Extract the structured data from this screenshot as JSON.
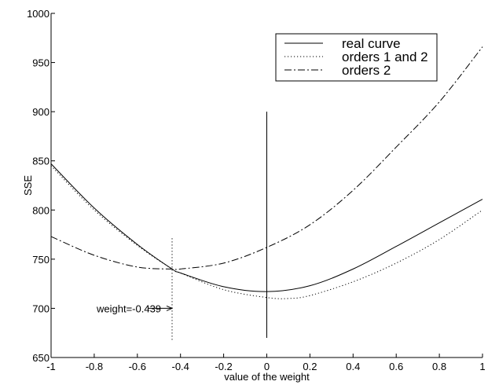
{
  "chart_data": {
    "type": "line",
    "title": "",
    "xlabel": "value of the weight",
    "ylabel": "SSE",
    "xlim": [
      -1,
      1
    ],
    "ylim": [
      650,
      1000
    ],
    "x_ticks": [
      -1,
      -0.8,
      -0.6,
      -0.4,
      -0.2,
      0,
      0.2,
      0.4,
      0.6,
      0.8,
      1
    ],
    "x_tick_labels": [
      "-1",
      "-0.8",
      "-0.6",
      "-0.4",
      "-0.2",
      "0",
      "0.2",
      "0.4",
      "0.6",
      "0.8",
      "1"
    ],
    "y_ticks": [
      650,
      700,
      750,
      800,
      850,
      900,
      950,
      1000
    ],
    "y_tick_labels": [
      "650",
      "700",
      "750",
      "800",
      "850",
      "900",
      "950",
      "1000"
    ],
    "grid": false,
    "legend_position": "top-right",
    "series": [
      {
        "name": "real curve",
        "style": "solid",
        "x": [
          -1,
          -0.8,
          -0.6,
          -0.439,
          -0.4,
          -0.2,
          0,
          0.2,
          0.4,
          0.6,
          0.8,
          1
        ],
        "y": [
          847,
          802,
          765,
          740,
          736,
          722,
          717,
          723,
          740,
          763,
          787,
          811
        ]
      },
      {
        "name": "orders 1 and 2",
        "style": "dotted",
        "x": [
          -1,
          -0.8,
          -0.6,
          -0.439,
          -0.4,
          -0.2,
          0,
          0.1,
          0.2,
          0.4,
          0.6,
          0.8,
          1
        ],
        "y": [
          845,
          800,
          764,
          740,
          736,
          719,
          711,
          710,
          713,
          727,
          746,
          770,
          800
        ]
      },
      {
        "name": "orders 2",
        "style": "dashdot",
        "x": [
          -1,
          -0.8,
          -0.6,
          -0.439,
          -0.4,
          -0.2,
          0,
          0.2,
          0.4,
          0.6,
          0.8,
          1
        ],
        "y": [
          773,
          754,
          742,
          740,
          740,
          746,
          762,
          785,
          820,
          864,
          910,
          966
        ]
      }
    ],
    "vertical_lines": [
      {
        "x": 0,
        "y_range": [
          670,
          900
        ],
        "style": "solid"
      },
      {
        "x": -0.439,
        "y_range": [
          668,
          772
        ],
        "style": "dotted"
      }
    ],
    "annotations": [
      {
        "text": "weight=-0.439",
        "x": -0.439,
        "y": 700,
        "arrow": true
      }
    ]
  }
}
